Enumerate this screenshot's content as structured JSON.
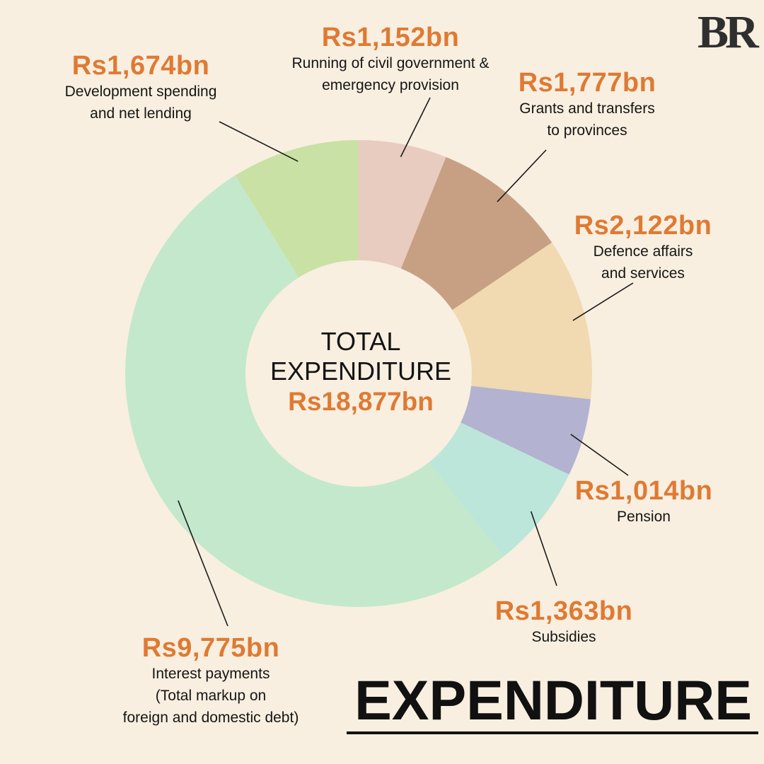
{
  "logo": "BR",
  "page_title": "EXPENDITURE",
  "center": {
    "title": "TOTAL\nEXPENDITURE",
    "value": "Rs18,877bn"
  },
  "labels": {
    "civil": {
      "value": "Rs1,152bn",
      "desc": "Running of civil government &\nemergency provision"
    },
    "grants": {
      "value": "Rs1,777bn",
      "desc": "Grants and transfers\nto provinces"
    },
    "defence": {
      "value": "Rs2,122bn",
      "desc": "Defence affairs\nand services"
    },
    "pension": {
      "value": "Rs1,014bn",
      "desc": "Pension"
    },
    "subsidies": {
      "value": "Rs1,363bn",
      "desc": "Subsidies"
    },
    "interest": {
      "value": "Rs9,775bn",
      "desc": "Interest payments\n(Total markup on\nforeign and domestic debt)"
    },
    "development": {
      "value": "Rs1,674bn",
      "desc": "Development spending\nand net lending"
    }
  },
  "chart_data": {
    "type": "pie",
    "donut": true,
    "unit": "Rs bn",
    "total": 18877,
    "categories": [
      "Running of civil government & emergency provision",
      "Grants and transfers to provinces",
      "Defence affairs and services",
      "Pension",
      "Subsidies",
      "Interest payments (Total markup on foreign and domestic debt)",
      "Development spending and net lending"
    ],
    "values": [
      1152,
      1777,
      2122,
      1014,
      1363,
      9775,
      1674
    ],
    "colors": [
      "#e8ccc0",
      "#c7a084",
      "#f1d9b1",
      "#b3b2d0",
      "#bce6d9",
      "#c4e8cb",
      "#c9e1a4"
    ]
  }
}
